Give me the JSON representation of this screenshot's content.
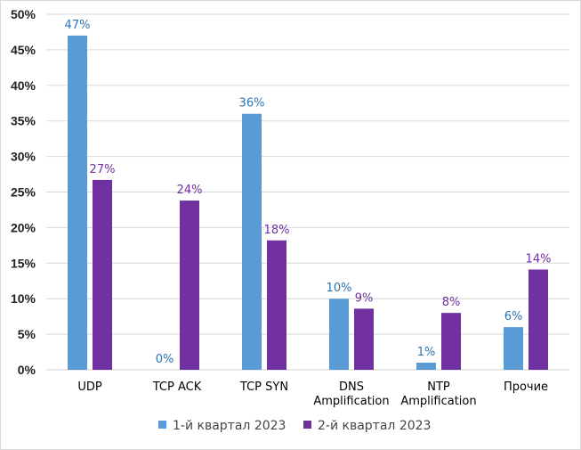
{
  "chart_data": {
    "type": "bar",
    "title": "",
    "xlabel": "",
    "ylabel": "",
    "ylim": [
      0,
      50
    ],
    "ytick_step": 5,
    "ytick_labels": [
      "0%",
      "5%",
      "10%",
      "15%",
      "20%",
      "25%",
      "30%",
      "35%",
      "40%",
      "45%",
      "50%"
    ],
    "categories": [
      [
        "UDP"
      ],
      [
        "TCP ACK"
      ],
      [
        "TCP SYN"
      ],
      [
        "DNS",
        "Amplification"
      ],
      [
        "NTP",
        "Amplification"
      ],
      [
        "Прочие"
      ]
    ],
    "series": [
      {
        "name": "1-й квартал 2023",
        "color": "#5b9bd5",
        "label_color": "#2e75b6",
        "values": [
          47,
          0,
          36,
          10,
          1,
          6
        ],
        "labels": [
          "47%",
          "0%",
          "36%",
          "10%",
          "1%",
          "6%"
        ]
      },
      {
        "name": "2-й квартал 2023",
        "color": "#7030a0",
        "label_color": "#7030a0",
        "values": [
          26.7,
          23.8,
          18.2,
          8.6,
          8.0,
          14.1
        ],
        "labels": [
          "27%",
          "24%",
          "18%",
          "9%",
          "8%",
          "14%"
        ]
      }
    ],
    "grid": true,
    "legend_position": "bottom"
  }
}
